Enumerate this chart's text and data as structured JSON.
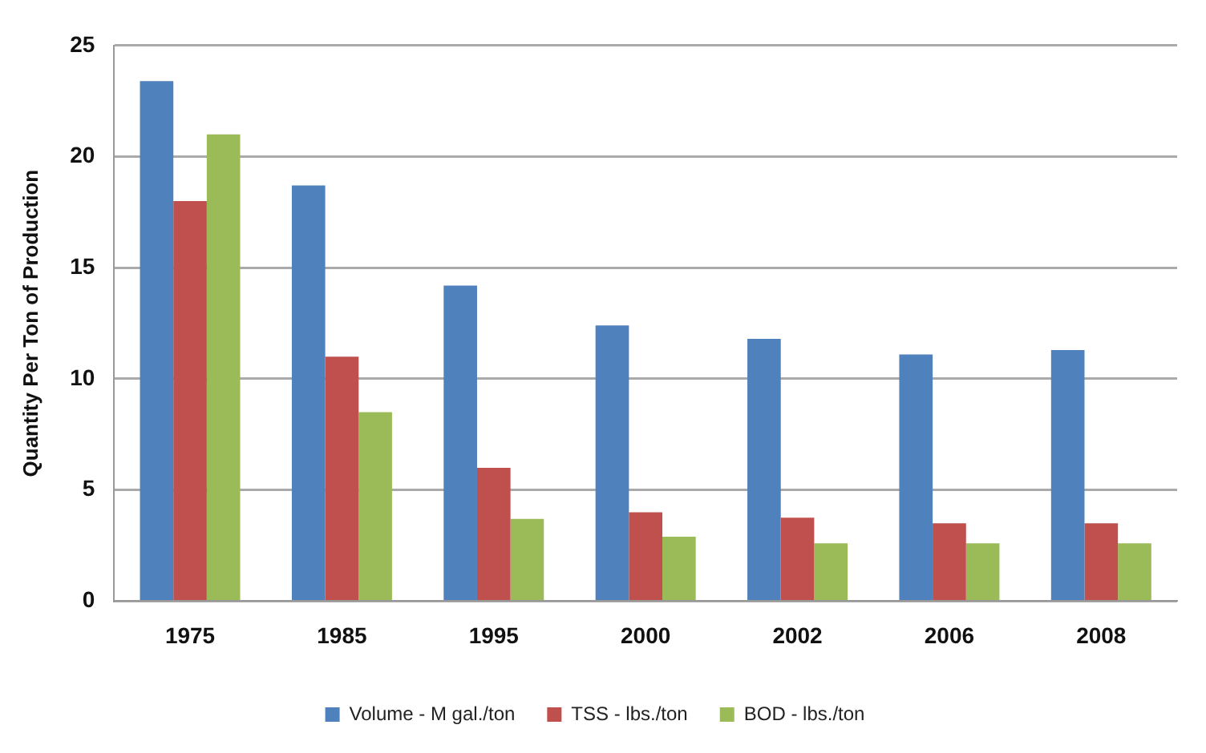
{
  "chart_data": {
    "type": "bar",
    "ylabel": "Quantity Per Ton of Production",
    "categories": [
      "1975",
      "1985",
      "1995",
      "2000",
      "2002",
      "2006",
      "2008"
    ],
    "series": [
      {
        "name": "Volume - M gal./ton",
        "color": "#4f81bd",
        "values": [
          23.4,
          18.7,
          14.2,
          12.4,
          11.8,
          11.1,
          11.3
        ]
      },
      {
        "name": "TSS - lbs./ton",
        "color": "#c0504d",
        "values": [
          18,
          11,
          6,
          4,
          3.75,
          3.5,
          3.5
        ]
      },
      {
        "name": "BOD - lbs./ton",
        "color": "#9bbb59",
        "values": [
          21,
          8.5,
          3.7,
          2.9,
          2.6,
          2.6,
          2.6
        ]
      }
    ],
    "ylim": [
      0,
      25
    ],
    "yticks": [
      0,
      5,
      10,
      15,
      20,
      25
    ],
    "grid": "y",
    "legend": "bottom"
  }
}
